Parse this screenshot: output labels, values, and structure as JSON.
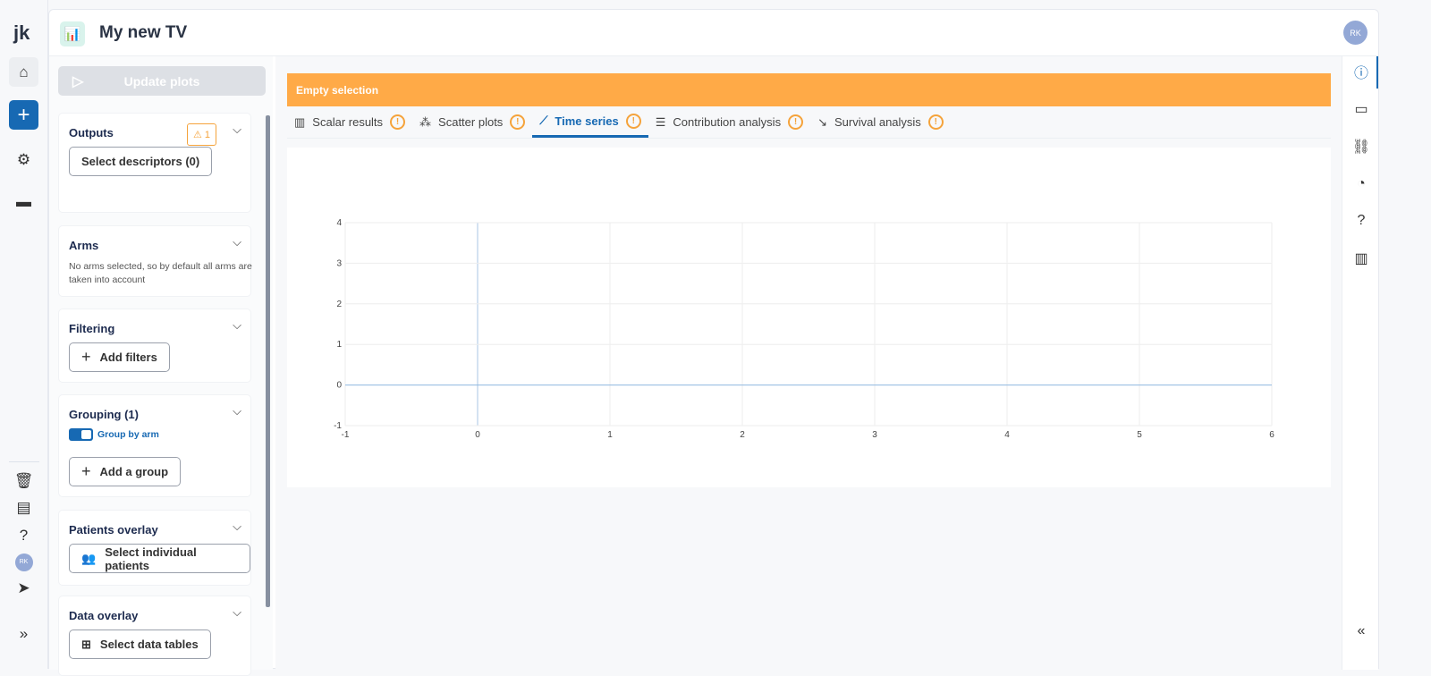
{
  "app": {
    "logo": "jk",
    "title": "My new TV",
    "avatar": "RK"
  },
  "rail": {
    "icons": [
      "home-icon",
      "plus-icon",
      "gear-icon",
      "folder-icon"
    ],
    "bottom_icons": [
      "trash-icon",
      "notes-icon",
      "help-icon",
      "avatar",
      "send-icon",
      "expand-icon"
    ],
    "avatar": "RK",
    "accent": "#1769b3"
  },
  "left": {
    "update_label": "Update plots",
    "outputs": {
      "title": "Outputs",
      "warning_count": "1",
      "button": "Select descriptors (0)"
    },
    "arms": {
      "title": "Arms",
      "note": "No arms selected, so by default all arms are taken into account"
    },
    "filtering": {
      "title": "Filtering",
      "button": "Add filters"
    },
    "grouping": {
      "title": "Grouping (1)",
      "toggle_label": "Group by arm",
      "toggle_on": true,
      "button": "Add a group"
    },
    "patients": {
      "title": "Patients overlay",
      "button": "Select individual patients"
    },
    "data": {
      "title": "Data overlay",
      "button": "Select data tables"
    }
  },
  "banner": {
    "text": "Empty selection",
    "color": "#ffaa47"
  },
  "tabs": [
    {
      "label": "Scalar results",
      "icon": "bar-chart-icon"
    },
    {
      "label": "Scatter plots",
      "icon": "scatter-icon"
    },
    {
      "label": "Time series",
      "icon": "line-chart-icon",
      "active": true
    },
    {
      "label": "Contribution analysis",
      "icon": "contribution-icon"
    },
    {
      "label": "Survival analysis",
      "icon": "survival-icon"
    }
  ],
  "warn_mark": "!",
  "chart_data": {
    "type": "line",
    "series": [],
    "xlim": [
      -1,
      6
    ],
    "ylim": [
      -1,
      4
    ],
    "xticks": [
      "-1",
      "0",
      "1",
      "2",
      "3",
      "4",
      "5",
      "6"
    ],
    "yticks": [
      "-1",
      "0",
      "1",
      "2",
      "3",
      "4"
    ],
    "grid": true
  },
  "right_icons": [
    "info-icon",
    "comment-icon",
    "link-icon",
    "history-icon",
    "help-icon",
    "chart-icon",
    "collapse-icon"
  ]
}
